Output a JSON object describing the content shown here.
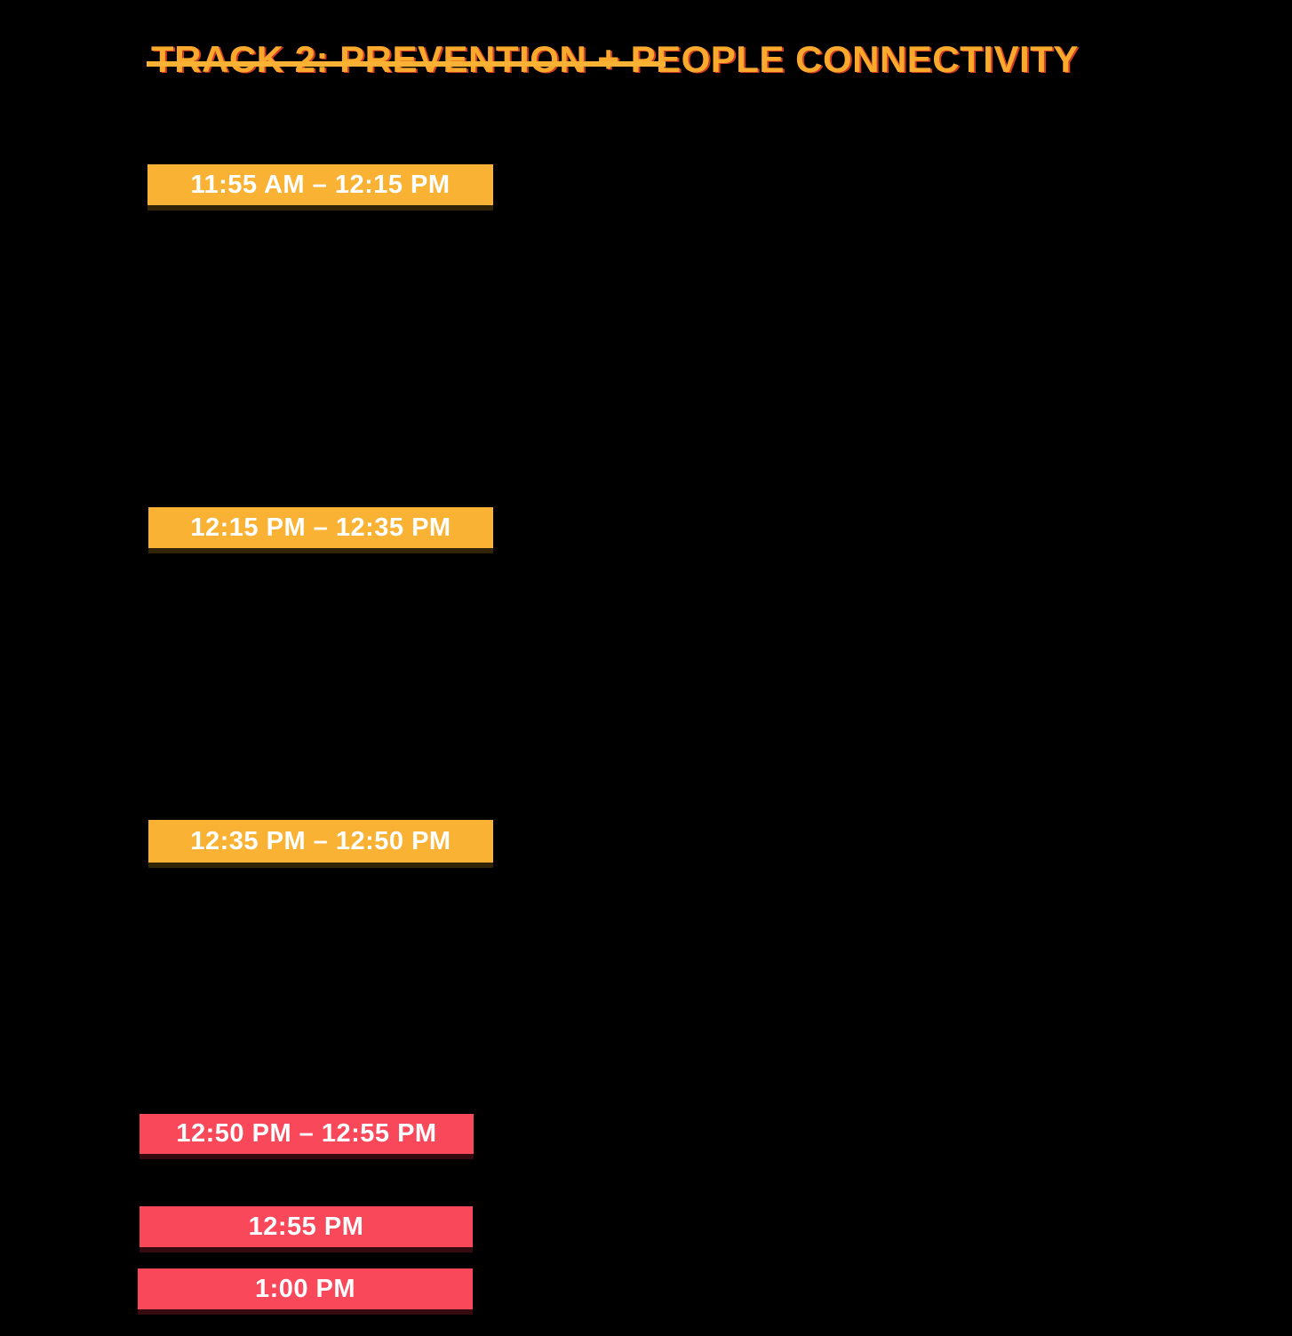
{
  "page": {
    "title": "TRACK 2: PREVENTION + PEOPLE CONNECTIVITY"
  },
  "theme": {
    "background": "#000000",
    "title_color": "#F9A92B",
    "title_shadow": "#D43B25",
    "underline_color": "#F9B234",
    "session_color": "#F9B234",
    "break_color": "#F9485A",
    "badge_text_color": "#FFFFFF"
  },
  "schedule": {
    "time_slots": [
      {
        "time": "11:55 AM – 12:15 PM",
        "style": "session"
      },
      {
        "time": "12:15 PM – 12:35 PM",
        "style": "session"
      },
      {
        "time": "12:35 PM – 12:50 PM",
        "style": "session"
      },
      {
        "time": "12:50 PM – 12:55 PM",
        "style": "break"
      },
      {
        "time": "12:55 PM",
        "style": "break"
      },
      {
        "time": "1:00 PM",
        "style": "break"
      }
    ]
  }
}
